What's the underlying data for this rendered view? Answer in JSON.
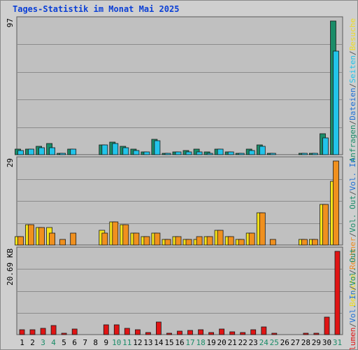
{
  "chart_data": {
    "title": "Tages-Statistik im Monat Mai 2025",
    "type": "bar",
    "categories": [
      "1",
      "2",
      "3",
      "4",
      "5",
      "6",
      "7",
      "8",
      "9",
      "10",
      "11",
      "12",
      "13",
      "14",
      "15",
      "16",
      "17",
      "18",
      "19",
      "20",
      "21",
      "22",
      "23",
      "24",
      "25",
      "26",
      "27",
      "28",
      "29",
      "30",
      "31"
    ],
    "weekend_days": [
      "3",
      "4",
      "10",
      "11",
      "17",
      "18",
      "24",
      "25",
      "31"
    ],
    "panels": [
      {
        "id": "top",
        "ymax_label": "97",
        "ymax": 97,
        "legend": [
          "Anfragen",
          "/",
          "Dateien",
          "/",
          "Seiten",
          "/",
          "Besuche"
        ],
        "legend_colors": [
          "#1a8c68",
          "#555555",
          "#1f6fd6",
          "#555555",
          "#22c4ea",
          "#555555",
          "#f0dd20"
        ],
        "series": [
          {
            "name": "Anfragen",
            "color": "#1a8c68",
            "values": [
              4,
              4,
              6,
              8,
              1,
              4,
              0,
              0,
              7,
              9,
              6,
              4,
              2,
              11,
              1,
              2,
              3,
              4,
              2,
              4,
              2,
              1,
              4,
              7,
              1,
              0,
              0,
              1,
              1,
              15,
              97
            ]
          },
          {
            "name": "Dateien",
            "color": "#22c4ea",
            "values": [
              3,
              4,
              5,
              5,
              1,
              4,
              0,
              0,
              7,
              8,
              5,
              3,
              2,
              10,
              1,
              2,
              2,
              2,
              1,
              4,
              2,
              1,
              3,
              6,
              1,
              0,
              0,
              1,
              1,
              12,
              75
            ]
          },
          {
            "name": "Seiten",
            "color": "#1f6fd6",
            "values": [
              0,
              0,
              0,
              0,
              0,
              0,
              0,
              0,
              0,
              0,
              0,
              0,
              0,
              0,
              0,
              0,
              0,
              0,
              0,
              0,
              0,
              0,
              0,
              0,
              0,
              0,
              0,
              0,
              0,
              0,
              0
            ]
          }
        ]
      },
      {
        "id": "mid",
        "ymax_label": "29",
        "ymax": 29,
        "legend": [
          "Besuche",
          "/",
          "Rechner",
          "/",
          "Vol. Out",
          "/",
          "Vol. In"
        ],
        "legend_colors": [
          "#f0dd20",
          "#555555",
          "#f08c20",
          "#555555",
          "#1a8c68",
          "#555555",
          "#1f6fd6"
        ],
        "series": [
          {
            "name": "Besuche",
            "color": "#f5e418",
            "values": [
              3,
              7,
              6,
              6,
              0,
              0,
              0,
              0,
              5,
              8,
              7,
              4,
              3,
              4,
              2,
              3,
              2,
              2,
              3,
              5,
              3,
              2,
              4,
              11,
              0,
              0,
              0,
              2,
              2,
              14,
              22
            ]
          },
          {
            "name": "Rechner",
            "color": "#f0901e",
            "values": [
              3,
              7,
              6,
              4,
              2,
              4,
              0,
              0,
              4,
              8,
              7,
              4,
              3,
              4,
              2,
              3,
              2,
              3,
              3,
              5,
              3,
              2,
              4,
              11,
              2,
              0,
              0,
              2,
              2,
              14,
              29
            ]
          }
        ]
      },
      {
        "id": "bottom",
        "ymax_label": "20.69 KB",
        "ymax": 20.69,
        "legend": [
          "Volumen",
          "/",
          "Vol. In",
          "/",
          "Vol. Out"
        ],
        "legend_colors": [
          "#e01818",
          "#555555",
          "#1f6fd6",
          "#555555",
          "#1a8c68"
        ],
        "series": [
          {
            "name": "Volumen",
            "color": "#e01414",
            "values": [
              1.2,
              1.3,
              1.6,
              2.2,
              0.3,
              1.4,
              0,
              0,
              2.5,
              2.5,
              1.5,
              1.2,
              0.6,
              3.2,
              0.4,
              0.9,
              1.1,
              1.2,
              0.6,
              1.4,
              0.7,
              0.5,
              1.3,
              1.9,
              0.3,
              0,
              0,
              0.4,
              0.4,
              4.4,
              20.69
            ]
          }
        ]
      }
    ]
  }
}
